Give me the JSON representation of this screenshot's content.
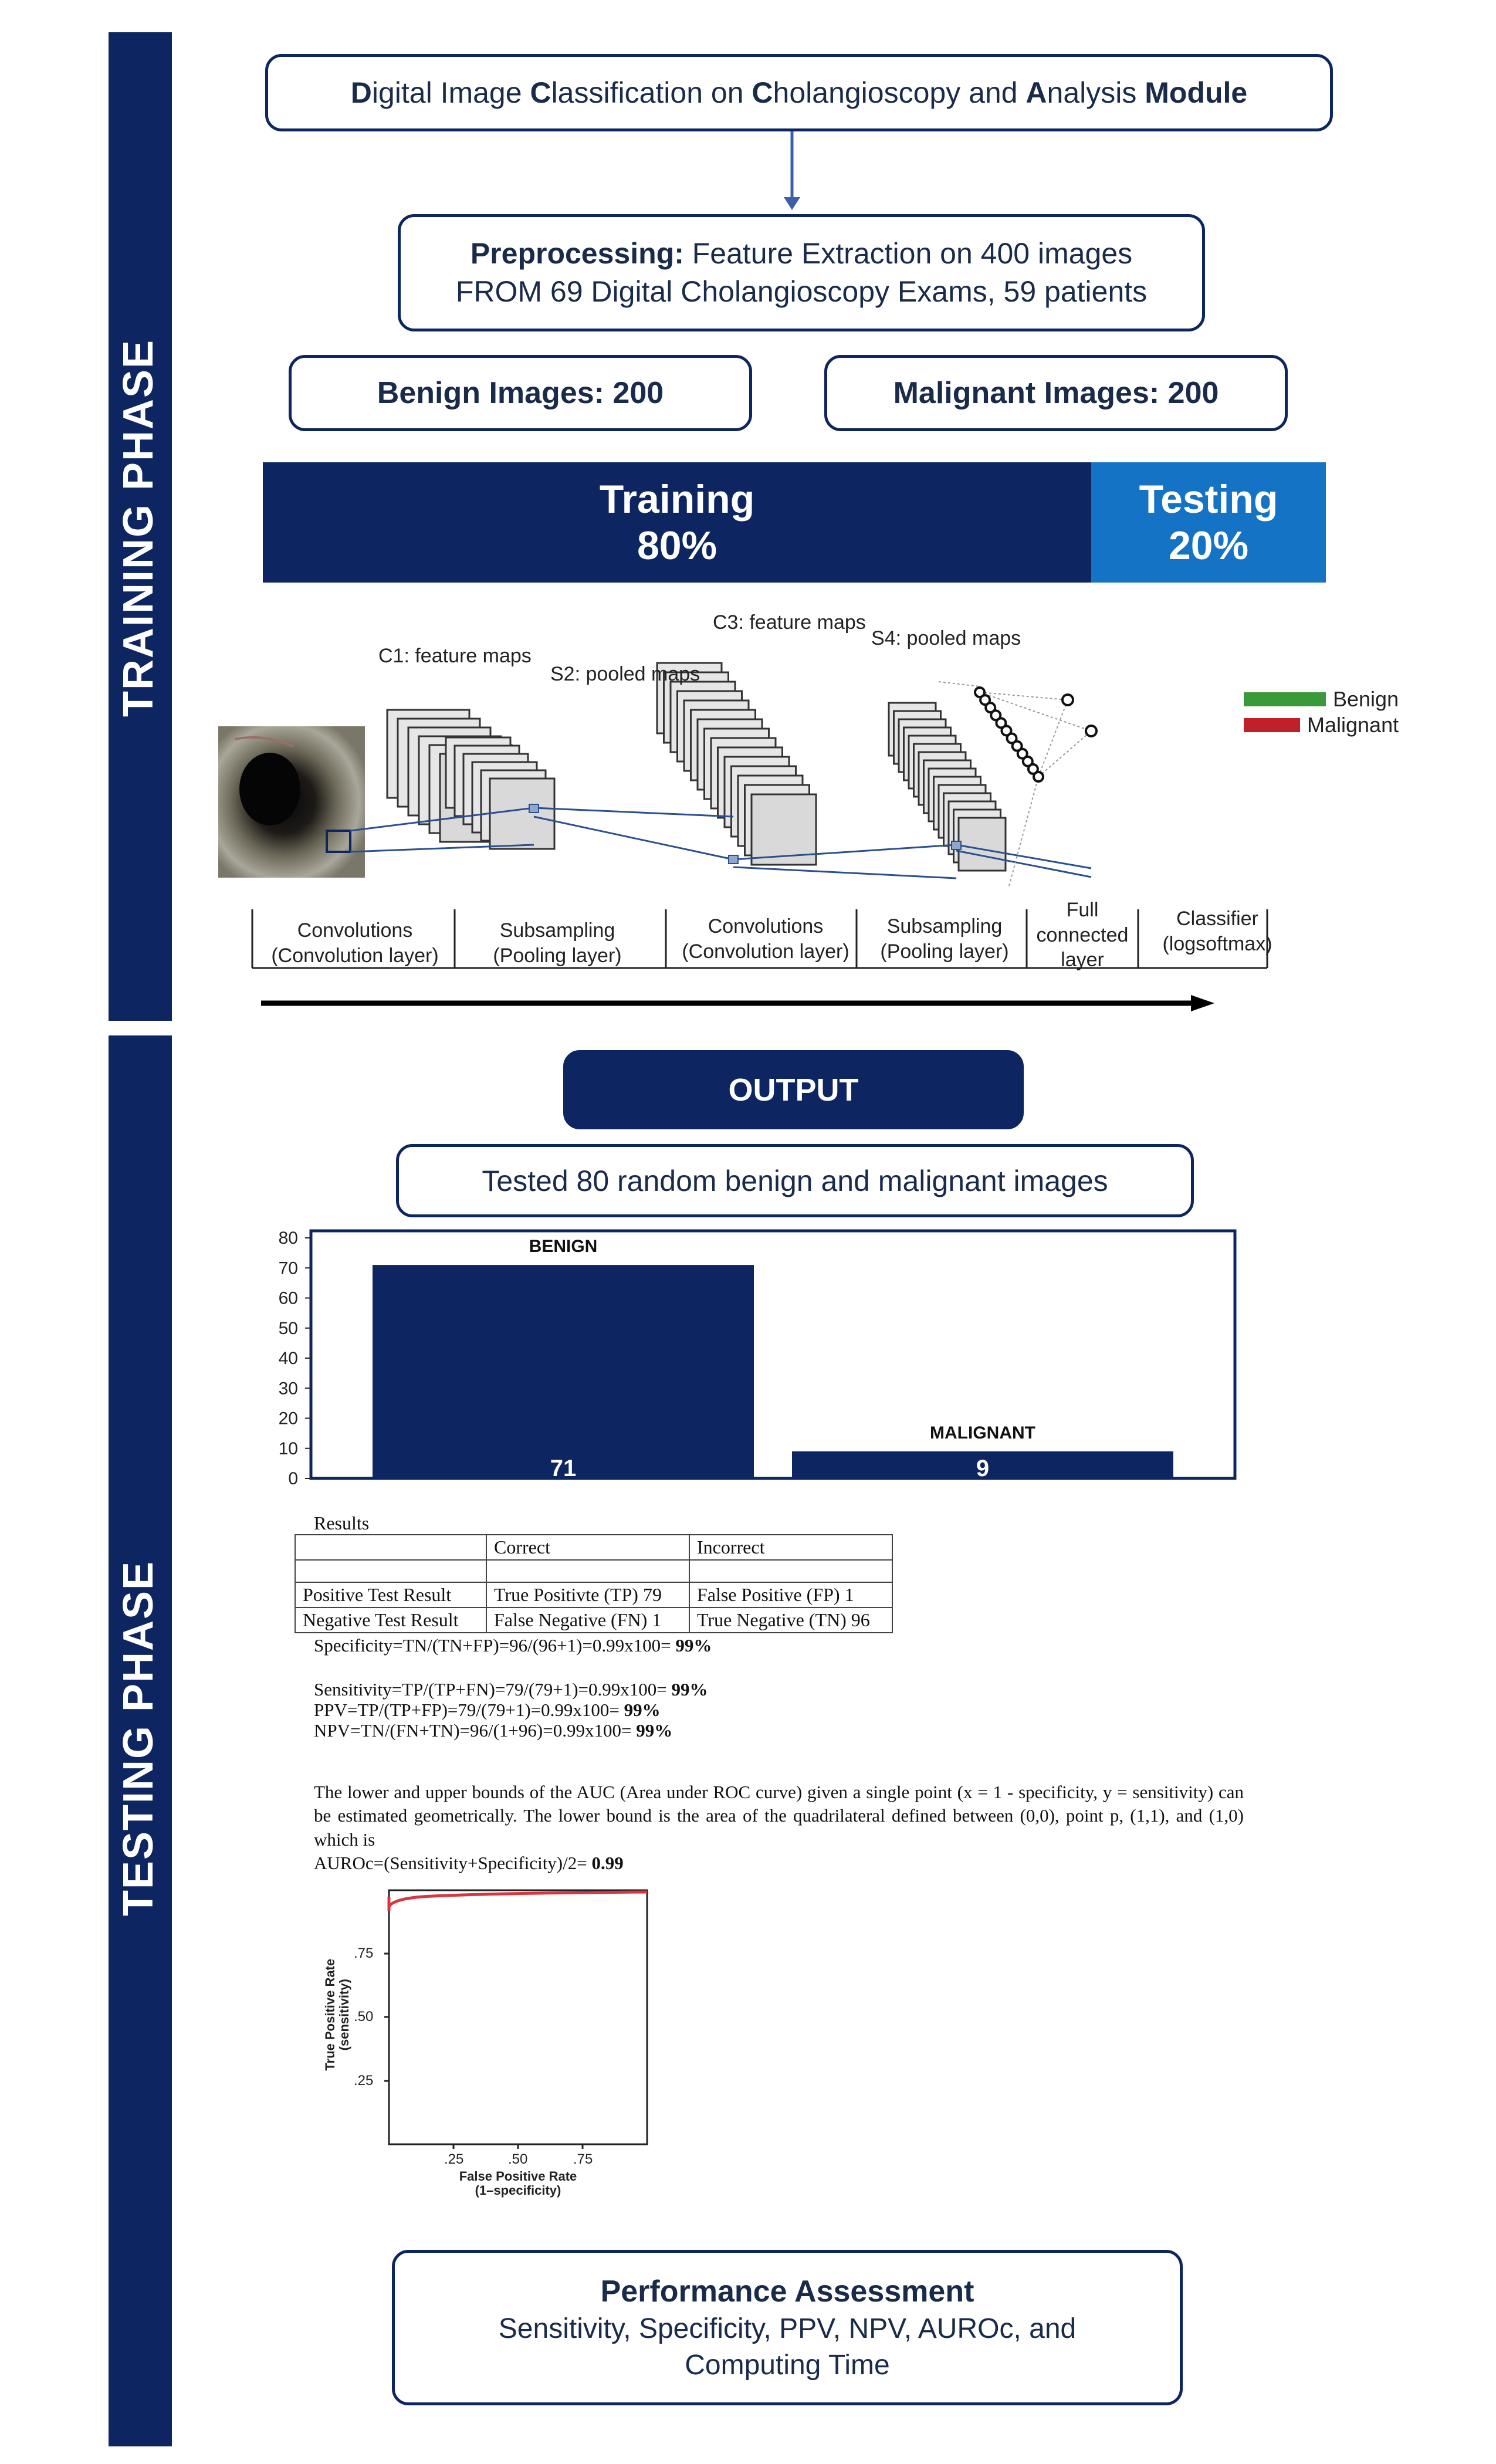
{
  "phases": {
    "training": "TRAINING PHASE",
    "testing": "TESTING PHASE"
  },
  "title_box": {
    "parts": [
      {
        "text": "D",
        "bold": true
      },
      {
        "text": "igital Image ",
        "bold": false
      },
      {
        "text": "C",
        "bold": true
      },
      {
        "text": "lassification on ",
        "bold": false
      },
      {
        "text": "C",
        "bold": true
      },
      {
        "text": "holangioscopy and ",
        "bold": false
      },
      {
        "text": "A",
        "bold": true
      },
      {
        "text": "nalysis ",
        "bold": false
      },
      {
        "text": "Module",
        "bold": true
      }
    ]
  },
  "preprocessing": {
    "label": "Preprocessing:",
    "line1": " Feature Extraction on 400 images",
    "line2": "FROM 69 Digital Cholangioscopy Exams, 59 patients"
  },
  "benign_images": "Benign Images: 200",
  "malignant_images": "Malignant Images: 200",
  "split": {
    "training_label": "Training",
    "training_pct": "80%",
    "testing_label": "Testing",
    "testing_pct": "20%"
  },
  "cnn": {
    "c1": "C1: feature maps",
    "s2": "S2: pooled maps",
    "c3": "C3: feature maps",
    "s4": "S4: pooled maps",
    "legend": [
      {
        "label": "Benign",
        "color": "#3a9a3a"
      },
      {
        "label": "Malignant",
        "color": "#c0202a"
      }
    ],
    "stages": [
      {
        "l1": "Convolutions",
        "l2": "(Convolution layer)"
      },
      {
        "l1": "Subsampling",
        "l2": "(Pooling layer)"
      },
      {
        "l1": "Convolutions",
        "l2": "(Convolution layer)"
      },
      {
        "l1": "Subsampling",
        "l2": "(Pooling layer)"
      },
      {
        "l1": "Full",
        "l2": "connected",
        "l3": "layer"
      },
      {
        "l1": "Classifier",
        "l2": "(logsoftmax)"
      }
    ]
  },
  "output_label": "OUTPUT",
  "tested_label": "Tested 80 random benign and malignant images",
  "chart_data": {
    "type": "bar",
    "categories": [
      "BENIGN",
      "MALIGNANT"
    ],
    "values": [
      71,
      9
    ],
    "yticks": [
      "80",
      "70",
      "60",
      "50",
      "40",
      "30",
      "20",
      "10",
      "0"
    ],
    "ylim": [
      0,
      80
    ],
    "color": "#0d2560"
  },
  "results": {
    "caption": "Results",
    "header": [
      "",
      "Correct",
      "Incorrect"
    ],
    "rows": [
      [
        "Positive Test Result",
        "True Positivte (TP) 79",
        "False Positive (FP) 1"
      ],
      [
        "Negative Test Result",
        "False Negative (FN) 1",
        "True Negative (TN) 96"
      ]
    ]
  },
  "formulas": {
    "specificity": {
      "text": "Specificity=TN/(TN+FP)=96/(96+1)=0.99x100= ",
      "bold": "99%"
    },
    "sensitivity": {
      "text": "Sensitivity=TP/(TP+FN)=79/(79+1)=0.99x100= ",
      "bold": "99%"
    },
    "ppv": {
      "text": "PPV=TP/(TP+FP)=79/(79+1)=0.99x100= ",
      "bold": "99%"
    },
    "npv": {
      "text": "NPV=TN/(FN+TN)=96/(1+96)=0.99x100= ",
      "bold": "99%"
    }
  },
  "auc_text": {
    "paragraph": "The lower and upper bounds of the AUC (Area under ROC curve) given a single point (x = 1 - specificity, y = sensitivity) can be estimated geometrically. The lower bound is the area of the quadrilateral defined between (0,0), point p, (1,1), and (1,0) which is",
    "formula": "AUROc=(Sensitivity+Specificity)/2= ",
    "formula_bold": "0.99"
  },
  "roc": {
    "ylabel1": "True Positive Rate",
    "ylabel2": "(sensitivity)",
    "xlabel1": "False Positive Rate",
    "xlabel2": "(1–specificity)",
    "yticks": [
      ".75",
      ".50",
      ".25"
    ],
    "xticks": [
      ".25",
      ".50",
      ".75"
    ],
    "curve_color": "#d9343f"
  },
  "performance": {
    "title": "Performance Assessment",
    "line1": "Sensitivity, Specificity, PPV, NPV, AUROc, and",
    "line2": "Computing Time"
  }
}
